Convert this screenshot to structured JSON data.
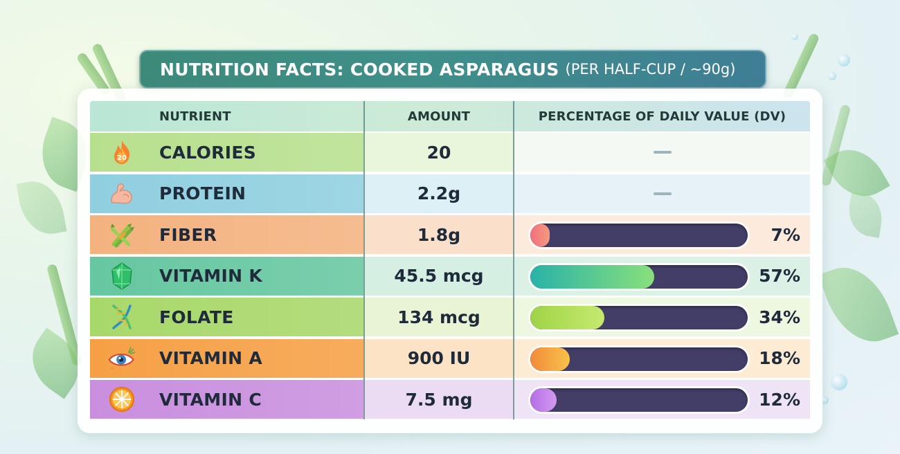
{
  "title": {
    "main": "NUTRITION FACTS: COOKED ASPARAGUS",
    "sub": "(PER HALF-CUP / ~90g)"
  },
  "headers": {
    "nutrient": "NUTRIENT",
    "amount": "AMOUNT",
    "dv": "PERCENTAGE OF DAILY VALUE (DV)"
  },
  "rows": [
    {
      "name": "CALORIES",
      "amount": "20",
      "dv_percent": null,
      "dv_label": "",
      "icon": "flame-icon",
      "icon_text": "20",
      "left_bg": "#b7e08e",
      "mid_bg": "#eaf6dc",
      "right_bg": "#f4f9f4",
      "fill": "",
      "dash": true
    },
    {
      "name": "PROTEIN",
      "amount": "2.2g",
      "dv_percent": null,
      "dv_label": "",
      "icon": "flexed-arm-icon",
      "icon_text": "",
      "left_bg": "#8fcfe0",
      "mid_bg": "#dcf0f5",
      "right_bg": "#e6f2f7",
      "fill": "",
      "dash": true
    },
    {
      "name": "FIBER",
      "amount": "1.8g",
      "dv_percent": 7,
      "dv_label": "7%",
      "icon": "asparagus-icon",
      "icon_text": "",
      "left_bg": "#f4b27f",
      "mid_bg": "#fae0ca",
      "right_bg": "#fcebdc",
      "fill": "linear-gradient(90deg,#f06f7f,#f39b7d)",
      "dash": false
    },
    {
      "name": "VITAMIN K",
      "amount": "45.5 mcg",
      "dv_percent": 57,
      "dv_label": "57%",
      "icon": "gem-icon",
      "icon_text": "",
      "left_bg": "#66c7a0",
      "mid_bg": "#d5efe2",
      "right_bg": "#dcf1e6",
      "fill": "linear-gradient(90deg,#29b2a8,#89e07c)",
      "dash": false
    },
    {
      "name": "FOLATE",
      "amount": "134 mcg",
      "dv_percent": 34,
      "dv_label": "34%",
      "icon": "dna-icon",
      "icon_text": "",
      "left_bg": "#a8d86a",
      "mid_bg": "#e8f4d3",
      "right_bg": "#eef7e0",
      "fill": "linear-gradient(90deg,#9fd346,#c6ea6f)",
      "dash": false
    },
    {
      "name": "VITAMIN A",
      "amount": "900 IU",
      "dv_percent": 18,
      "dv_label": "18%",
      "icon": "eye-icon",
      "icon_text": "",
      "left_bg": "#f6a045",
      "mid_bg": "#fde3c5",
      "right_bg": "#fdebd4",
      "fill": "linear-gradient(90deg,#f28a3b,#f8c24a)",
      "dash": false
    },
    {
      "name": "VITAMIN C",
      "amount": "7.5 mg",
      "dv_percent": 12,
      "dv_label": "12%",
      "icon": "orange-slice-icon",
      "icon_text": "",
      "left_bg": "#c98fde",
      "mid_bg": "#ecdcf3",
      "right_bg": "#efe3f6",
      "fill": "linear-gradient(90deg,#b36ee5,#d39af0)",
      "dash": false
    }
  ]
}
